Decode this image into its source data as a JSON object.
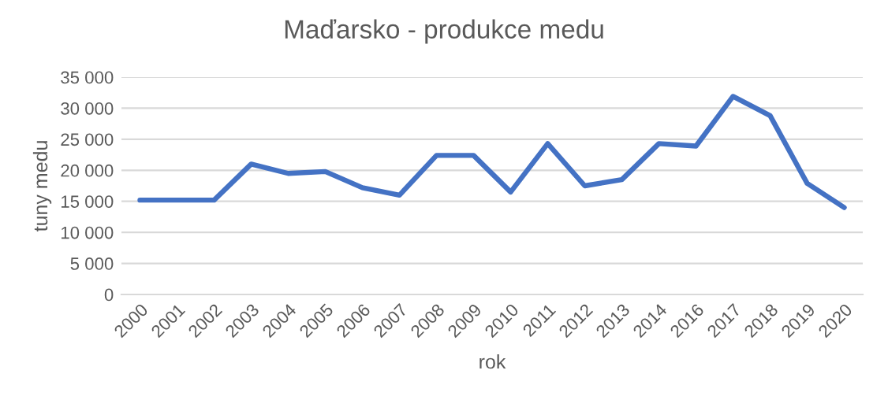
{
  "chart_data": {
    "type": "line",
    "title": "Maďarsko - produkce medu",
    "xlabel": "rok",
    "ylabel": "tuny medu",
    "categories": [
      "2000",
      "2001",
      "2002",
      "2003",
      "2004",
      "2005",
      "2006",
      "2007",
      "2008",
      "2009",
      "2010",
      "2011",
      "2012",
      "2013",
      "2014",
      "2016",
      "2017",
      "2018",
      "2019",
      "2020"
    ],
    "series": [
      {
        "color": "#4472c4",
        "values": [
          15200,
          15200,
          15200,
          21000,
          19500,
          19800,
          17200,
          16000,
          22400,
          22400,
          16500,
          24300,
          17500,
          18500,
          24300,
          23900,
          31900,
          28800,
          17900,
          14000
        ]
      }
    ],
    "ylim": [
      0,
      35000
    ],
    "yticks": [
      {
        "value": 0,
        "label": "0"
      },
      {
        "value": 5000,
        "label": "5 000"
      },
      {
        "value": 10000,
        "label": "10 000"
      },
      {
        "value": 15000,
        "label": "15 000"
      },
      {
        "value": 20000,
        "label": "20 000"
      },
      {
        "value": 25000,
        "label": "25 000"
      },
      {
        "value": 30000,
        "label": "30 000"
      },
      {
        "value": 35000,
        "label": "35 000"
      }
    ],
    "grid": "y",
    "legend": false,
    "marker": "none",
    "line_style": "solid"
  }
}
